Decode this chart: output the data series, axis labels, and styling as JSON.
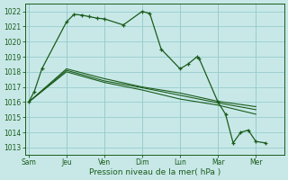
{
  "xlabel": "Pression niveau de la mer( hPa )",
  "background_color": "#c8e8e8",
  "grid_color": "#99cccc",
  "line_color": "#1a5c1a",
  "ylim": [
    1012.5,
    1022.5
  ],
  "ytick_vals": [
    1013,
    1014,
    1015,
    1016,
    1017,
    1018,
    1019,
    1020,
    1021,
    1022
  ],
  "x_labels": [
    "Sam",
    "Jeu",
    "Ven",
    "Dim",
    "Lun",
    "Mar",
    "Mer"
  ],
  "x_positions": [
    0,
    2,
    4,
    6,
    8,
    10,
    12
  ],
  "xlim": [
    -0.2,
    13.5
  ],
  "main_x": [
    0,
    0.3,
    0.7,
    2.0,
    2.4,
    2.8,
    3.2,
    3.6,
    4.0,
    5.0,
    6.0,
    6.4,
    7.0,
    8.0,
    8.4,
    8.9,
    9.0,
    10.0,
    10.4,
    10.8,
    11.2,
    11.6,
    12.0,
    12.5
  ],
  "main_y": [
    1016.0,
    1016.7,
    1018.2,
    1021.3,
    1021.8,
    1021.75,
    1021.65,
    1021.55,
    1021.5,
    1021.1,
    1022.0,
    1021.85,
    1019.5,
    1018.2,
    1018.5,
    1019.0,
    1018.9,
    1016.0,
    1015.2,
    1013.3,
    1014.0,
    1014.15,
    1013.4,
    1013.3
  ],
  "line1_x": [
    0,
    2,
    4,
    6,
    8,
    10,
    12
  ],
  "line1_y": [
    1016.0,
    1018.0,
    1017.3,
    1016.8,
    1016.2,
    1015.8,
    1015.2
  ],
  "line2_x": [
    0,
    2,
    4,
    6,
    8,
    10,
    12
  ],
  "line2_y": [
    1016.0,
    1018.1,
    1017.4,
    1016.95,
    1016.45,
    1015.95,
    1015.5
  ],
  "line3_x": [
    0,
    2,
    4,
    6,
    8,
    10,
    12
  ],
  "line3_y": [
    1016.0,
    1018.2,
    1017.55,
    1017.0,
    1016.6,
    1016.05,
    1015.7
  ]
}
